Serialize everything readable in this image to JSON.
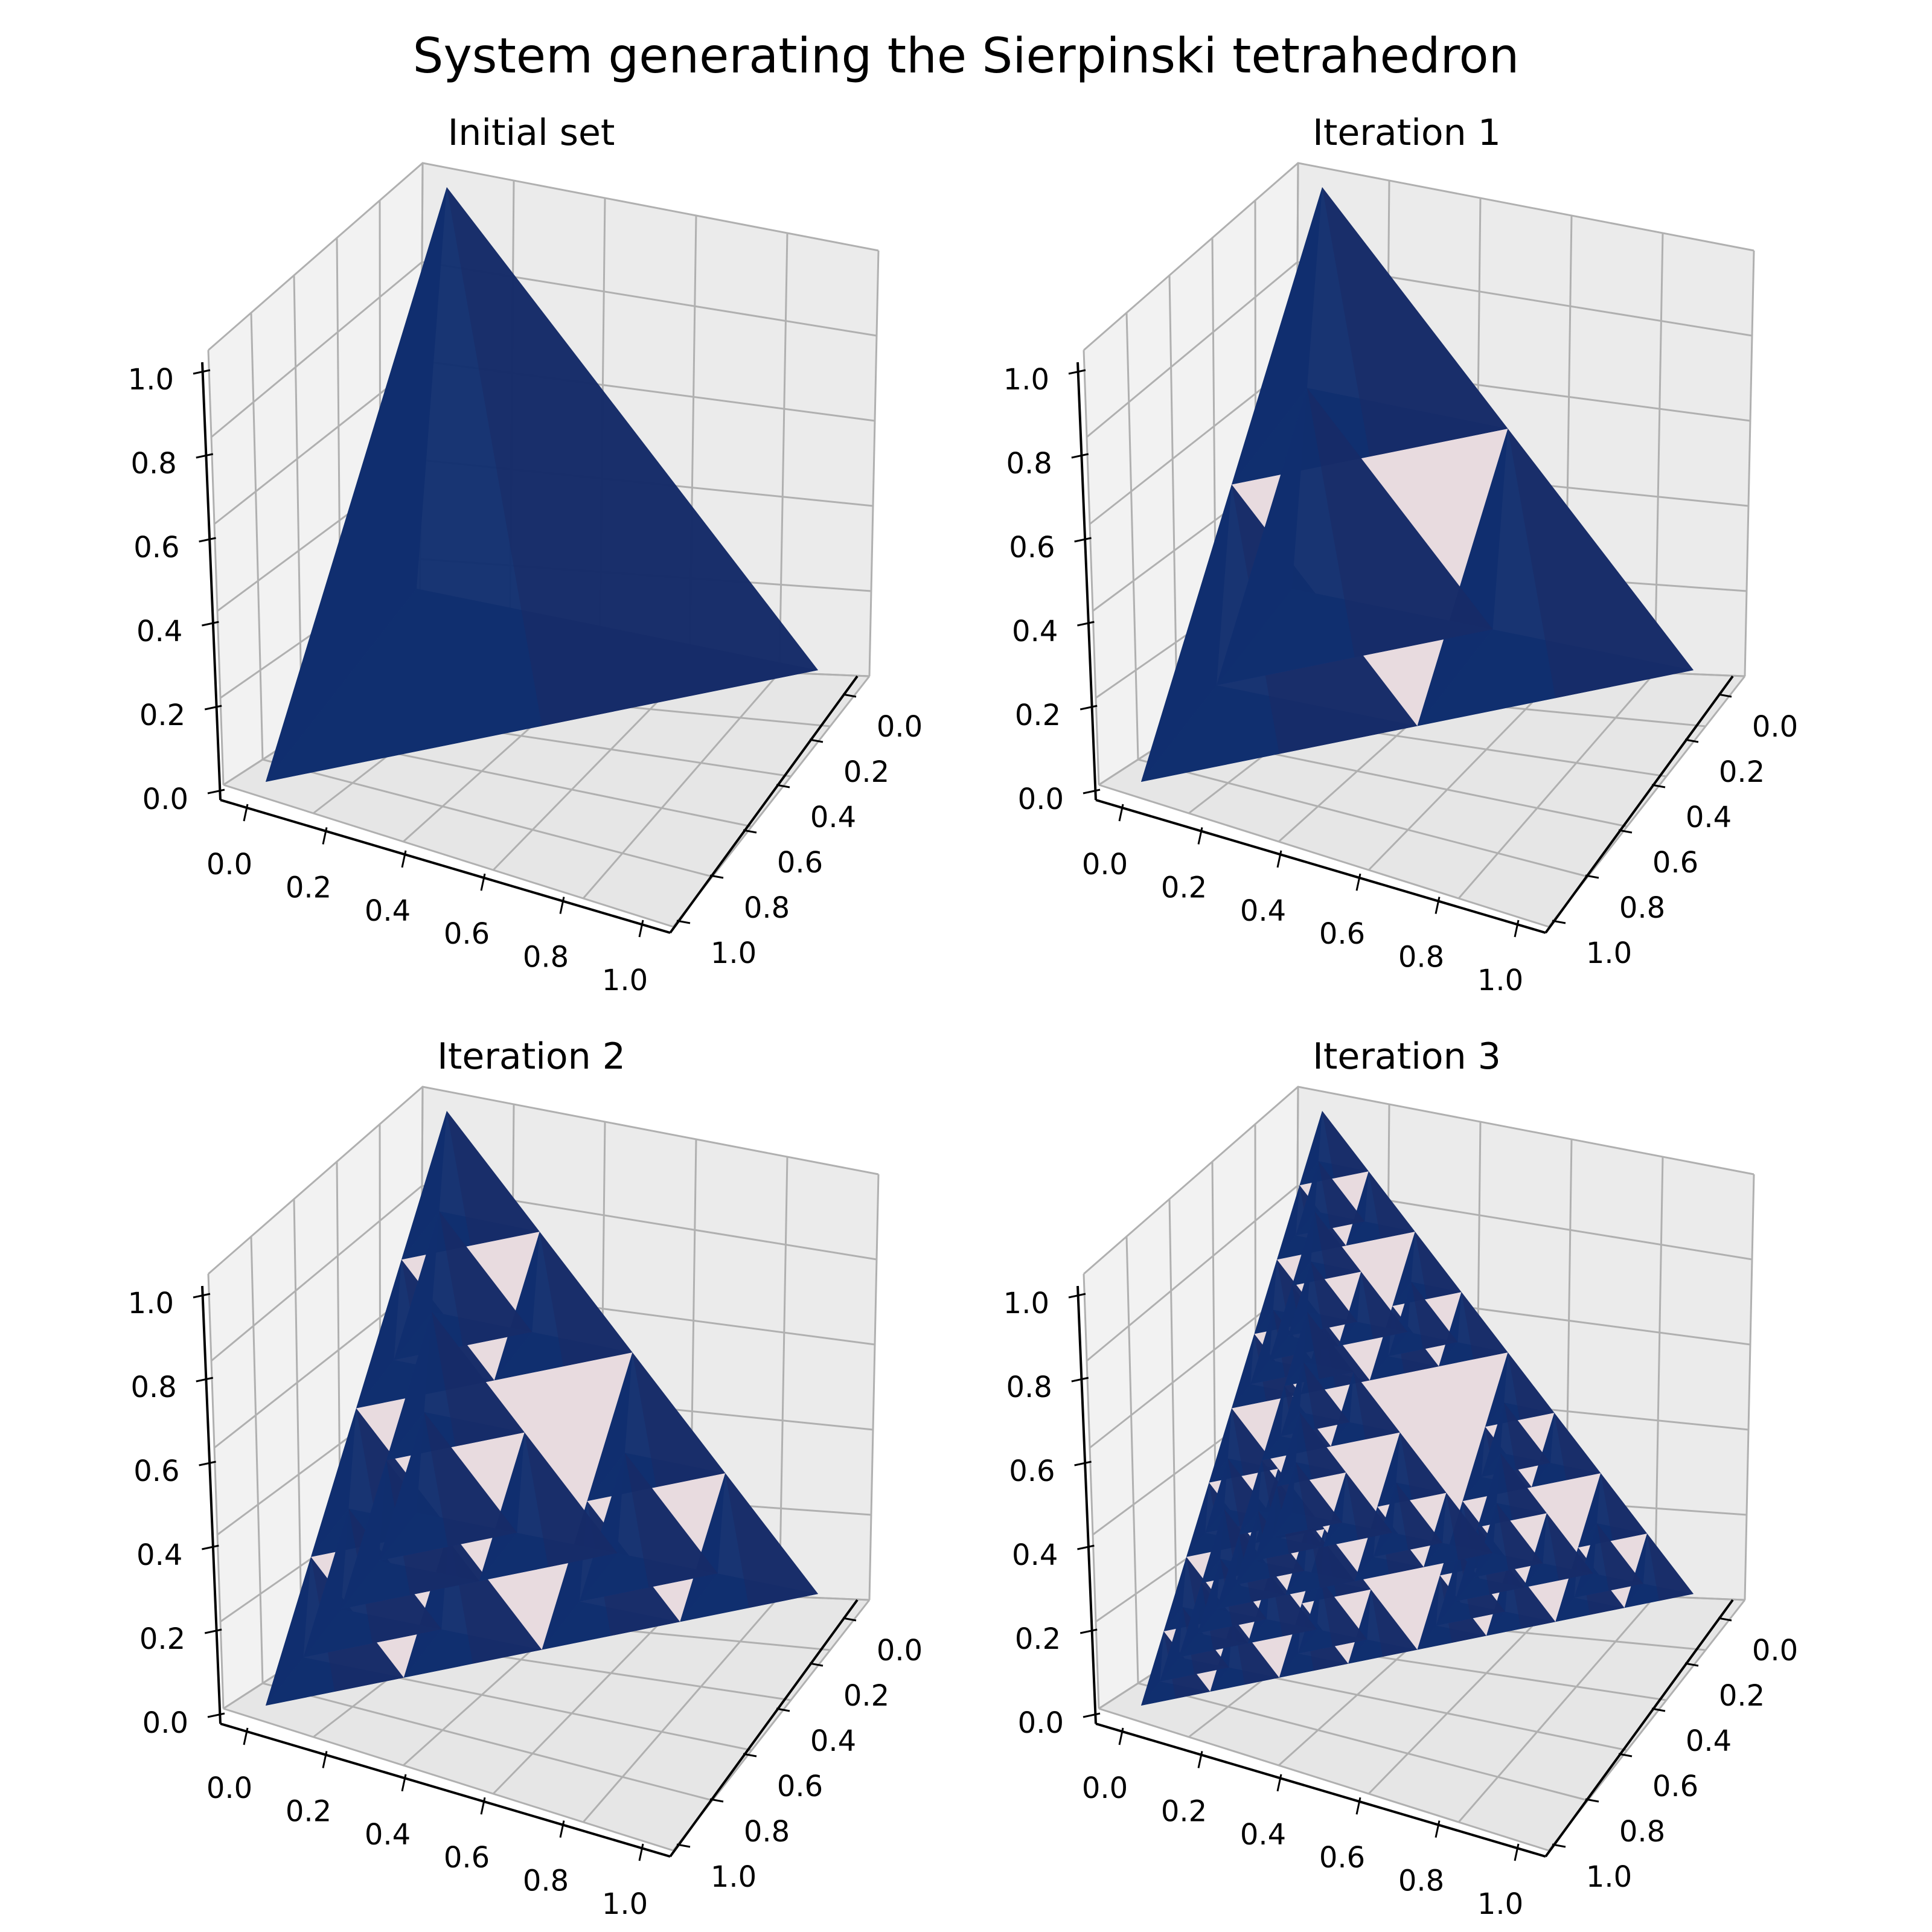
{
  "figure": {
    "title": "System generating the Sierpinski tetrahedron",
    "face_colors": {
      "front": "#112e6e",
      "shadow": "#1a3a8a",
      "back": "#1c2a64",
      "inner": "#e8dbdf",
      "pane": "#f2f2f2",
      "grid": "#b0b0b0"
    }
  },
  "chart_data": [
    {
      "type": "3d-surface",
      "title": "Initial set",
      "iteration": 0,
      "tetrahedra_count": 1,
      "xlim": [
        0,
        1
      ],
      "ylim": [
        0,
        1
      ],
      "zlim": [
        0,
        1
      ],
      "x_ticks": [
        "0.0",
        "0.2",
        "0.4",
        "0.6",
        "0.8",
        "1.0"
      ],
      "y_ticks": [
        "0.0",
        "0.2",
        "0.4",
        "0.6",
        "0.8",
        "1.0"
      ],
      "z_ticks": [
        "0.0",
        "0.2",
        "0.4",
        "0.6",
        "0.8",
        "1.0"
      ],
      "grid": true
    },
    {
      "type": "3d-surface",
      "title": "Iteration 1",
      "iteration": 1,
      "tetrahedra_count": 4,
      "xlim": [
        0,
        1
      ],
      "ylim": [
        0,
        1
      ],
      "zlim": [
        0,
        1
      ],
      "x_ticks": [
        "0.0",
        "0.2",
        "0.4",
        "0.6",
        "0.8",
        "1.0"
      ],
      "y_ticks": [
        "0.0",
        "0.2",
        "0.4",
        "0.6",
        "0.8",
        "1.0"
      ],
      "z_ticks": [
        "0.0",
        "0.2",
        "0.4",
        "0.6",
        "0.8",
        "1.0"
      ],
      "grid": true
    },
    {
      "type": "3d-surface",
      "title": "Iteration 2",
      "iteration": 2,
      "tetrahedra_count": 16,
      "xlim": [
        0,
        1
      ],
      "ylim": [
        0,
        1
      ],
      "zlim": [
        0,
        1
      ],
      "x_ticks": [
        "0.0",
        "0.2",
        "0.4",
        "0.6",
        "0.8",
        "1.0"
      ],
      "y_ticks": [
        "0.0",
        "0.2",
        "0.4",
        "0.6",
        "0.8",
        "1.0"
      ],
      "z_ticks": [
        "0.0",
        "0.2",
        "0.4",
        "0.6",
        "0.8",
        "1.0"
      ],
      "grid": true
    },
    {
      "type": "3d-surface",
      "title": "Iteration 3",
      "iteration": 3,
      "tetrahedra_count": 64,
      "xlim": [
        0,
        1
      ],
      "ylim": [
        0,
        1
      ],
      "zlim": [
        0,
        1
      ],
      "x_ticks": [
        "0.0",
        "0.2",
        "0.4",
        "0.6",
        "0.8",
        "1.0"
      ],
      "y_ticks": [
        "0.0",
        "0.2",
        "0.4",
        "0.6",
        "0.8",
        "1.0"
      ],
      "z_ticks": [
        "0.0",
        "0.2",
        "0.4",
        "0.6",
        "0.8",
        "1.0"
      ],
      "grid": true
    }
  ]
}
